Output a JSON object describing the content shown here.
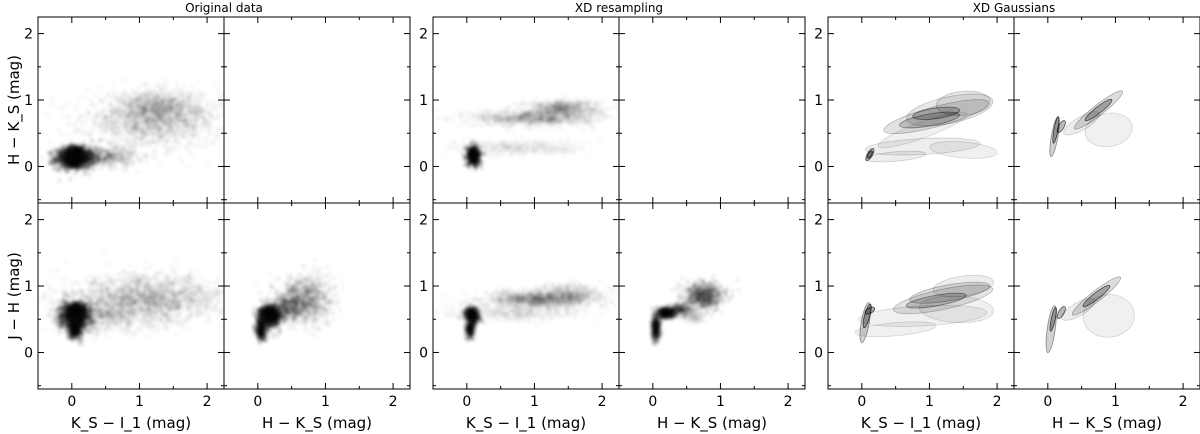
{
  "figure": {
    "titles": [
      "Original data",
      "XD resampling",
      "XD Gaussians"
    ],
    "xlabels": [
      "K_S − I_1 (mag)",
      "H − K_S (mag)"
    ],
    "ylabels": [
      "H − K_S (mag)",
      "J − H (mag)"
    ]
  },
  "chart_data": {
    "type": "scatter",
    "description_groups": [
      "Original data",
      "XD resampling",
      "XD Gaussians"
    ],
    "axes": {
      "x_ticks": [
        0,
        1,
        2
      ],
      "y_ticks": [
        0,
        1,
        2
      ],
      "xlim": [
        -0.5,
        2.25
      ],
      "ylim": [
        -0.55,
        2.25
      ],
      "grid": false
    },
    "panels": [
      {
        "group": "Original data",
        "x": "K_S - I_1",
        "y": "H - K_S",
        "kind": "density",
        "clusters": [
          {
            "cx": 0.05,
            "cy": 0.12,
            "sx": 0.15,
            "sy": 0.08,
            "n": 900,
            "a": 0.55
          },
          {
            "cx": 0.05,
            "cy": 0.22,
            "sx": 0.08,
            "sy": 0.05,
            "n": 300,
            "a": 0.7
          },
          {
            "cx": 0.03,
            "cy": 0.07,
            "sx": 0.06,
            "sy": 0.04,
            "n": 200,
            "a": 0.7
          },
          {
            "cx": 0.4,
            "cy": 0.15,
            "sx": 0.28,
            "sy": 0.08,
            "n": 500,
            "a": 0.25
          },
          {
            "cx": 1.2,
            "cy": 0.7,
            "sx": 0.5,
            "sy": 0.2,
            "n": 1500,
            "a": 0.18
          },
          {
            "cx": 1.3,
            "cy": 0.9,
            "sx": 0.3,
            "sy": 0.12,
            "n": 500,
            "a": 0.2
          }
        ]
      },
      {
        "group": "Original data",
        "x": "H - K_S",
        "y": "J - H",
        "kind": "empty"
      },
      {
        "group": "XD resampling",
        "x": "K_S - I_1",
        "y": "H - K_S",
        "kind": "density",
        "clusters": [
          {
            "cx": 0.1,
            "cy": 0.16,
            "sx": 0.05,
            "sy": 0.07,
            "n": 400,
            "a": 0.75
          },
          {
            "cx": 1.0,
            "cy": 0.73,
            "sx": 0.45,
            "sy": 0.06,
            "n": 900,
            "a": 0.16
          },
          {
            "cx": 1.4,
            "cy": 0.88,
            "sx": 0.28,
            "sy": 0.06,
            "n": 500,
            "a": 0.2
          },
          {
            "cx": 0.8,
            "cy": 0.28,
            "sx": 0.5,
            "sy": 0.06,
            "n": 500,
            "a": 0.1
          }
        ]
      },
      {
        "group": "XD resampling",
        "x": "H - K_S",
        "y": "J - H",
        "kind": "empty"
      },
      {
        "group": "XD Gaussians",
        "x": "K_S - I_1",
        "y": "H - K_S",
        "kind": "ellipses",
        "ellipses": [
          {
            "cx": 1.1,
            "cy": 0.75,
            "rx": 0.8,
            "ry": 0.15,
            "rot": 15,
            "a": 0.18
          },
          {
            "cx": 1.3,
            "cy": 0.85,
            "rx": 0.65,
            "ry": 0.2,
            "rot": 12,
            "a": 0.15
          },
          {
            "cx": 1.0,
            "cy": 0.7,
            "rx": 0.45,
            "ry": 0.09,
            "rot": 10,
            "a": 0.3
          },
          {
            "cx": 1.1,
            "cy": 0.8,
            "rx": 0.35,
            "ry": 0.08,
            "rot": 8,
            "a": 0.35
          },
          {
            "cx": 1.5,
            "cy": 0.95,
            "rx": 0.4,
            "ry": 0.18,
            "rot": 5,
            "a": 0.15
          },
          {
            "cx": 0.9,
            "cy": 0.3,
            "rx": 0.85,
            "ry": 0.12,
            "rot": 3,
            "a": 0.12
          },
          {
            "cx": 1.5,
            "cy": 0.25,
            "rx": 0.5,
            "ry": 0.12,
            "rot": -5,
            "a": 0.1
          },
          {
            "cx": 0.5,
            "cy": 0.15,
            "rx": 0.45,
            "ry": 0.07,
            "rot": 5,
            "a": 0.12
          },
          {
            "cx": 0.12,
            "cy": 0.18,
            "rx": 0.1,
            "ry": 0.04,
            "rot": 60,
            "a": 0.45
          },
          {
            "cx": 0.12,
            "cy": 0.18,
            "rx": 0.06,
            "ry": 0.025,
            "rot": 60,
            "a": 0.6
          },
          {
            "cx": 0.9,
            "cy": 0.55,
            "rx": 0.7,
            "ry": 0.12,
            "rot": 20,
            "a": 0.1
          }
        ]
      },
      {
        "group": "XD Gaussians",
        "x": "H - K_S",
        "y": "J - H",
        "kind": "ellipses",
        "ellipses": [
          {
            "cx": 0.75,
            "cy": 0.85,
            "rx": 0.45,
            "ry": 0.08,
            "rot": 38,
            "a": 0.22
          },
          {
            "cx": 0.75,
            "cy": 0.85,
            "rx": 0.25,
            "ry": 0.05,
            "rot": 38,
            "a": 0.45
          },
          {
            "cx": 0.9,
            "cy": 0.55,
            "rx": 0.35,
            "ry": 0.25,
            "rot": 10,
            "a": 0.1
          },
          {
            "cx": 0.1,
            "cy": 0.45,
            "rx": 0.3,
            "ry": 0.05,
            "rot": 80,
            "a": 0.3
          },
          {
            "cx": 0.12,
            "cy": 0.55,
            "rx": 0.2,
            "ry": 0.03,
            "rot": 80,
            "a": 0.5
          },
          {
            "cx": 0.2,
            "cy": 0.6,
            "rx": 0.1,
            "ry": 0.04,
            "rot": 60,
            "a": 0.45
          },
          {
            "cx": 0.5,
            "cy": 0.65,
            "rx": 0.3,
            "ry": 0.1,
            "rot": 30,
            "a": 0.12
          }
        ]
      },
      {
        "group": "Original data",
        "x": "K_S - I_1",
        "y": "J - H",
        "kind": "density",
        "clusters": [
          {
            "cx": 0.05,
            "cy": 0.55,
            "sx": 0.12,
            "sy": 0.1,
            "n": 900,
            "a": 0.55
          },
          {
            "cx": 0.05,
            "cy": 0.35,
            "sx": 0.05,
            "sy": 0.07,
            "n": 300,
            "a": 0.65
          },
          {
            "cx": 0.08,
            "cy": 0.65,
            "sx": 0.08,
            "sy": 0.05,
            "n": 250,
            "a": 0.7
          },
          {
            "cx": 1.1,
            "cy": 0.8,
            "sx": 0.55,
            "sy": 0.18,
            "n": 1700,
            "a": 0.2
          },
          {
            "cx": 0.5,
            "cy": 0.55,
            "sx": 0.35,
            "sy": 0.12,
            "n": 500,
            "a": 0.15
          }
        ]
      },
      {
        "group": "Original data",
        "x": "H - K_S",
        "y": "J - H",
        "kind": "density",
        "clusters": [
          {
            "cx": 0.2,
            "cy": 0.55,
            "sx": 0.08,
            "sy": 0.08,
            "n": 700,
            "a": 0.55
          },
          {
            "cx": 0.05,
            "cy": 0.35,
            "sx": 0.04,
            "sy": 0.08,
            "n": 300,
            "a": 0.6
          },
          {
            "cx": 0.15,
            "cy": 0.6,
            "sx": 0.06,
            "sy": 0.04,
            "n": 250,
            "a": 0.7
          },
          {
            "cx": 0.7,
            "cy": 0.8,
            "sx": 0.2,
            "sy": 0.18,
            "n": 900,
            "a": 0.22
          },
          {
            "cx": 0.45,
            "cy": 0.68,
            "sx": 0.12,
            "sy": 0.1,
            "n": 300,
            "a": 0.3
          }
        ]
      },
      {
        "group": "XD resampling",
        "x": "K_S - I_1",
        "y": "J - H",
        "kind": "density",
        "clusters": [
          {
            "cx": 0.08,
            "cy": 0.55,
            "sx": 0.05,
            "sy": 0.06,
            "n": 350,
            "a": 0.75
          },
          {
            "cx": 0.05,
            "cy": 0.35,
            "sx": 0.03,
            "sy": 0.06,
            "n": 200,
            "a": 0.65
          },
          {
            "cx": 1.1,
            "cy": 0.8,
            "sx": 0.4,
            "sy": 0.06,
            "n": 900,
            "a": 0.2
          },
          {
            "cx": 0.7,
            "cy": 0.6,
            "sx": 0.5,
            "sy": 0.06,
            "n": 600,
            "a": 0.1
          },
          {
            "cx": 1.5,
            "cy": 0.9,
            "sx": 0.25,
            "sy": 0.07,
            "n": 400,
            "a": 0.15
          }
        ]
      },
      {
        "group": "XD resampling",
        "x": "H - K_S",
        "y": "J - H",
        "kind": "density",
        "clusters": [
          {
            "cx": 0.2,
            "cy": 0.6,
            "sx": 0.06,
            "sy": 0.04,
            "n": 300,
            "a": 0.75
          },
          {
            "cx": 0.05,
            "cy": 0.38,
            "sx": 0.03,
            "sy": 0.1,
            "n": 300,
            "a": 0.6
          },
          {
            "cx": 0.75,
            "cy": 0.85,
            "sx": 0.15,
            "sy": 0.1,
            "n": 600,
            "a": 0.35
          },
          {
            "cx": 0.4,
            "cy": 0.65,
            "sx": 0.08,
            "sy": 0.05,
            "n": 200,
            "a": 0.3
          },
          {
            "cx": 0.6,
            "cy": 0.55,
            "sx": 0.08,
            "sy": 0.05,
            "n": 150,
            "a": 0.12
          }
        ]
      },
      {
        "group": "XD Gaussians",
        "x": "K_S - I_1",
        "y": "J - H",
        "kind": "ellipses",
        "ellipses": [
          {
            "cx": 1.2,
            "cy": 0.8,
            "rx": 0.75,
            "ry": 0.15,
            "rot": 12,
            "a": 0.18
          },
          {
            "cx": 1.3,
            "cy": 0.9,
            "rx": 0.6,
            "ry": 0.12,
            "rot": 10,
            "a": 0.2
          },
          {
            "cx": 1.1,
            "cy": 0.78,
            "rx": 0.45,
            "ry": 0.08,
            "rot": 10,
            "a": 0.3
          },
          {
            "cx": 0.9,
            "cy": 0.55,
            "rx": 0.95,
            "ry": 0.15,
            "rot": 3,
            "a": 0.1
          },
          {
            "cx": 0.5,
            "cy": 0.35,
            "rx": 0.6,
            "ry": 0.1,
            "rot": 5,
            "a": 0.1
          },
          {
            "cx": 1.4,
            "cy": 0.65,
            "rx": 0.55,
            "ry": 0.2,
            "rot": -3,
            "a": 0.1
          },
          {
            "cx": 0.05,
            "cy": 0.45,
            "rx": 0.3,
            "ry": 0.06,
            "rot": 80,
            "a": 0.3
          },
          {
            "cx": 0.08,
            "cy": 0.55,
            "rx": 0.18,
            "ry": 0.04,
            "rot": 75,
            "a": 0.5
          },
          {
            "cx": 0.12,
            "cy": 0.63,
            "rx": 0.08,
            "ry": 0.04,
            "rot": 30,
            "a": 0.5
          },
          {
            "cx": 1.5,
            "cy": 1.0,
            "rx": 0.45,
            "ry": 0.15,
            "rot": 8,
            "a": 0.12
          }
        ]
      },
      {
        "group": "XD Gaussians",
        "x": "H - K_S",
        "y": "J - H",
        "kind": "ellipses",
        "ellipses": [
          {
            "cx": 0.72,
            "cy": 0.85,
            "rx": 0.45,
            "ry": 0.08,
            "rot": 38,
            "a": 0.22
          },
          {
            "cx": 0.72,
            "cy": 0.85,
            "rx": 0.25,
            "ry": 0.05,
            "rot": 38,
            "a": 0.45
          },
          {
            "cx": 0.9,
            "cy": 0.55,
            "rx": 0.38,
            "ry": 0.32,
            "rot": 5,
            "a": 0.1
          },
          {
            "cx": 0.05,
            "cy": 0.35,
            "rx": 0.35,
            "ry": 0.06,
            "rot": 82,
            "a": 0.3
          },
          {
            "cx": 0.08,
            "cy": 0.5,
            "rx": 0.18,
            "ry": 0.03,
            "rot": 78,
            "a": 0.5
          },
          {
            "cx": 0.2,
            "cy": 0.6,
            "rx": 0.1,
            "ry": 0.04,
            "rot": 60,
            "a": 0.45
          },
          {
            "cx": 0.45,
            "cy": 0.65,
            "rx": 0.28,
            "ry": 0.1,
            "rot": 30,
            "a": 0.12
          }
        ]
      }
    ]
  }
}
